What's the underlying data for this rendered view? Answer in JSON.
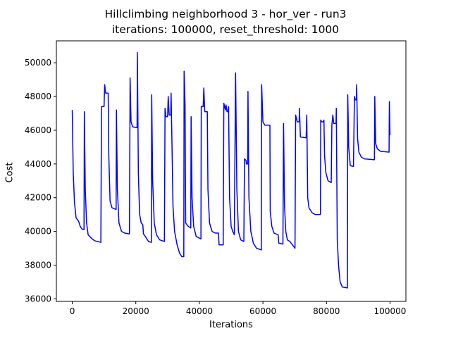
{
  "chart_data": {
    "type": "line",
    "title": "Hillclimbing neighborhood 3 - hor_ver - run3",
    "subtitle": "iterations: 100000, reset_threshold: 1000",
    "xlabel": "Iterations",
    "ylabel": "Cost",
    "xlim": [
      -5000,
      105000
    ],
    "ylim": [
      35850,
      51300
    ],
    "xticks": [
      0,
      20000,
      40000,
      60000,
      80000,
      100000
    ],
    "xtick_labels": [
      "0",
      "20000",
      "40000",
      "60000",
      "80000",
      "100000"
    ],
    "yticks": [
      36000,
      38000,
      40000,
      42000,
      44000,
      46000,
      48000,
      50000
    ],
    "ytick_labels": [
      "36000",
      "38000",
      "40000",
      "42000",
      "44000",
      "46000",
      "48000",
      "50000"
    ],
    "grid": false,
    "legend": "none",
    "series": [
      {
        "color": "#0000ff",
        "points": [
          [
            0,
            47200
          ],
          [
            300,
            43500
          ],
          [
            700,
            41700
          ],
          [
            1200,
            40800
          ],
          [
            2000,
            40600
          ],
          [
            2500,
            40300
          ],
          [
            3000,
            40150
          ],
          [
            3700,
            40100
          ],
          [
            3800,
            47100
          ],
          [
            4100,
            42500
          ],
          [
            4500,
            40500
          ],
          [
            5000,
            39800
          ],
          [
            6000,
            39600
          ],
          [
            7000,
            39450
          ],
          [
            9000,
            39350
          ],
          [
            9200,
            47400
          ],
          [
            10000,
            47400
          ],
          [
            10200,
            48700
          ],
          [
            10500,
            48200
          ],
          [
            11300,
            48200
          ],
          [
            11500,
            44500
          ],
          [
            11900,
            41800
          ],
          [
            12500,
            41400
          ],
          [
            13800,
            41300
          ],
          [
            13900,
            47200
          ],
          [
            14200,
            42500
          ],
          [
            14700,
            40500
          ],
          [
            15500,
            40000
          ],
          [
            16500,
            39900
          ],
          [
            18000,
            39850
          ],
          [
            18200,
            49100
          ],
          [
            18500,
            46500
          ],
          [
            19000,
            46200
          ],
          [
            20400,
            46150
          ],
          [
            20500,
            50600
          ],
          [
            20800,
            43500
          ],
          [
            21200,
            41000
          ],
          [
            21700,
            40500
          ],
          [
            22200,
            40400
          ],
          [
            22400,
            39850
          ],
          [
            23000,
            39700
          ],
          [
            24000,
            39400
          ],
          [
            24900,
            39350
          ],
          [
            25000,
            48100
          ],
          [
            25300,
            43000
          ],
          [
            25800,
            40500
          ],
          [
            26500,
            39800
          ],
          [
            27500,
            39500
          ],
          [
            29000,
            39400
          ],
          [
            29200,
            47300
          ],
          [
            29500,
            46800
          ],
          [
            30000,
            46800
          ],
          [
            30200,
            48000
          ],
          [
            30500,
            46900
          ],
          [
            31000,
            46900
          ],
          [
            31100,
            48200
          ],
          [
            31400,
            45000
          ],
          [
            31700,
            41500
          ],
          [
            32200,
            40000
          ],
          [
            33000,
            39200
          ],
          [
            33800,
            38700
          ],
          [
            34500,
            38500
          ],
          [
            35100,
            38500
          ],
          [
            35200,
            49500
          ],
          [
            35500,
            47500
          ],
          [
            35700,
            40500
          ],
          [
            36500,
            40300
          ],
          [
            37300,
            40200
          ],
          [
            37400,
            46800
          ],
          [
            37700,
            42000
          ],
          [
            38200,
            40300
          ],
          [
            39000,
            39700
          ],
          [
            40500,
            39550
          ],
          [
            40600,
            47400
          ],
          [
            41200,
            47400
          ],
          [
            41400,
            48500
          ],
          [
            41700,
            47100
          ],
          [
            42500,
            47100
          ],
          [
            42700,
            42500
          ],
          [
            43200,
            40500
          ],
          [
            44000,
            40000
          ],
          [
            45000,
            39900
          ],
          [
            46000,
            39900
          ],
          [
            46200,
            39200
          ],
          [
            47500,
            39200
          ],
          [
            47700,
            47600
          ],
          [
            48200,
            47200
          ],
          [
            48400,
            47500
          ],
          [
            48700,
            47100
          ],
          [
            49000,
            47100
          ],
          [
            49200,
            47400
          ],
          [
            49500,
            42000
          ],
          [
            50000,
            40300
          ],
          [
            50500,
            40000
          ],
          [
            51000,
            39800
          ],
          [
            51400,
            49400
          ],
          [
            51800,
            42500
          ],
          [
            52300,
            40000
          ],
          [
            53000,
            39500
          ],
          [
            54000,
            39400
          ],
          [
            54200,
            44300
          ],
          [
            54700,
            44200
          ],
          [
            54800,
            44000
          ],
          [
            55200,
            44000
          ],
          [
            55300,
            48300
          ],
          [
            55600,
            42000
          ],
          [
            56200,
            40000
          ],
          [
            57000,
            39300
          ],
          [
            58000,
            39000
          ],
          [
            59500,
            38900
          ],
          [
            59600,
            48700
          ],
          [
            60000,
            46500
          ],
          [
            60600,
            46300
          ],
          [
            62200,
            46300
          ],
          [
            62300,
            41200
          ],
          [
            62800,
            40300
          ],
          [
            63500,
            39900
          ],
          [
            64800,
            39800
          ],
          [
            65000,
            39300
          ],
          [
            66300,
            39250
          ],
          [
            66500,
            46400
          ],
          [
            66800,
            41500
          ],
          [
            67200,
            40000
          ],
          [
            67700,
            39500
          ],
          [
            68500,
            39400
          ],
          [
            70100,
            39000
          ],
          [
            70300,
            46900
          ],
          [
            70800,
            46500
          ],
          [
            71400,
            46500
          ],
          [
            71500,
            47300
          ],
          [
            71800,
            45600
          ],
          [
            73600,
            45550
          ],
          [
            73800,
            46900
          ],
          [
            74100,
            42000
          ],
          [
            74500,
            41400
          ],
          [
            75500,
            41100
          ],
          [
            76500,
            41000
          ],
          [
            78100,
            41000
          ],
          [
            78200,
            46600
          ],
          [
            78500,
            46500
          ],
          [
            79000,
            46500
          ],
          [
            79200,
            46600
          ],
          [
            79400,
            44500
          ],
          [
            79800,
            43500
          ],
          [
            80500,
            43000
          ],
          [
            81500,
            42900
          ],
          [
            81700,
            46300
          ],
          [
            82000,
            46900
          ],
          [
            82300,
            46400
          ],
          [
            83000,
            46400
          ],
          [
            83100,
            47300
          ],
          [
            83400,
            39500
          ],
          [
            83800,
            38000
          ],
          [
            84300,
            37000
          ],
          [
            85000,
            36700
          ],
          [
            86600,
            36650
          ],
          [
            86700,
            48100
          ],
          [
            87000,
            45000
          ],
          [
            87500,
            43900
          ],
          [
            88500,
            43850
          ],
          [
            88800,
            48000
          ],
          [
            89100,
            47800
          ],
          [
            89400,
            47800
          ],
          [
            89500,
            48700
          ],
          [
            89800,
            45500
          ],
          [
            90200,
            44700
          ],
          [
            91000,
            44400
          ],
          [
            92000,
            44300
          ],
          [
            95100,
            44250
          ],
          [
            95200,
            48000
          ],
          [
            95500,
            45200
          ],
          [
            96000,
            44900
          ],
          [
            97000,
            44750
          ],
          [
            99700,
            44700
          ],
          [
            99800,
            47700
          ],
          [
            100000,
            45700
          ]
        ]
      }
    ]
  }
}
